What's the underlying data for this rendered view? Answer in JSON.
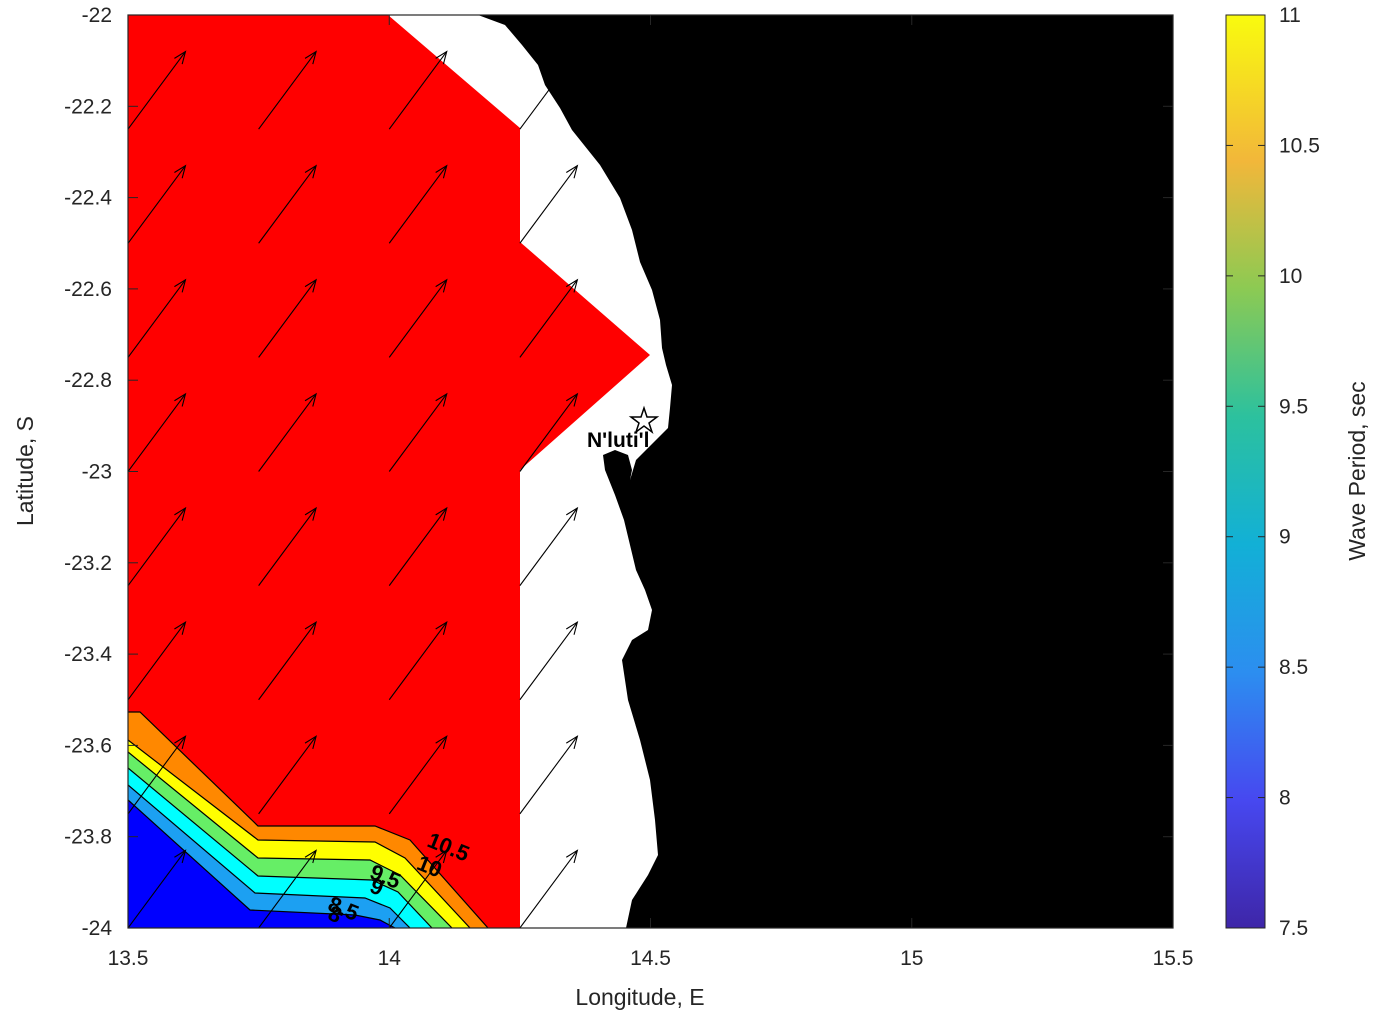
{
  "chart_data": {
    "type": "heatmap",
    "xlabel": "Longitude, E",
    "ylabel": "Latitude, S",
    "xlim": [
      13.5,
      15.5
    ],
    "ylim": [
      -24,
      -22
    ],
    "xticks": [
      13.5,
      14,
      14.5,
      15,
      15.5
    ],
    "yticks": [
      -22,
      -22.2,
      -22.4,
      -22.6,
      -22.8,
      -23,
      -23.2,
      -23.4,
      -23.6,
      -23.8,
      -24
    ],
    "grid": false,
    "colorbar": {
      "label": "Wave Period, sec",
      "range": [
        7.5,
        11
      ],
      "ticks": [
        7.5,
        8,
        8.5,
        9,
        9.5,
        10,
        10.5,
        11
      ]
    },
    "colors": {
      "land": "#000000",
      "nodata": "#ffffff",
      "above_range": "#ff0000",
      "arrows": "#000000"
    },
    "contour_levels": [
      8,
      8.5,
      9,
      9.5,
      10,
      10.5
    ],
    "contour_labels": [
      {
        "text": "10.5",
        "lon": 14.07,
        "lat": -23.82
      },
      {
        "text": "10",
        "lon": 14.05,
        "lat": -23.87
      },
      {
        "text": "9.5",
        "lon": 13.96,
        "lat": -23.89
      },
      {
        "text": "9",
        "lon": 13.96,
        "lat": -23.92
      },
      {
        "text": "8.5",
        "lon": 13.88,
        "lat": -23.96
      },
      {
        "text": "8",
        "lon": 13.88,
        "lat": -23.98
      }
    ],
    "marker": {
      "label": "N'luti'l",
      "lon": 14.48,
      "lat": -22.9,
      "symbol": "star"
    },
    "vector_field": {
      "lons": [
        13.5,
        13.75,
        14.0,
        14.25
      ],
      "lats": [
        -24.0,
        -23.75,
        -23.5,
        -23.25,
        -23.0,
        -22.75,
        -22.5,
        -22.25,
        -22.0
      ],
      "direction": "north-east",
      "dlon": 0.11,
      "dlat": 0.17
    }
  }
}
